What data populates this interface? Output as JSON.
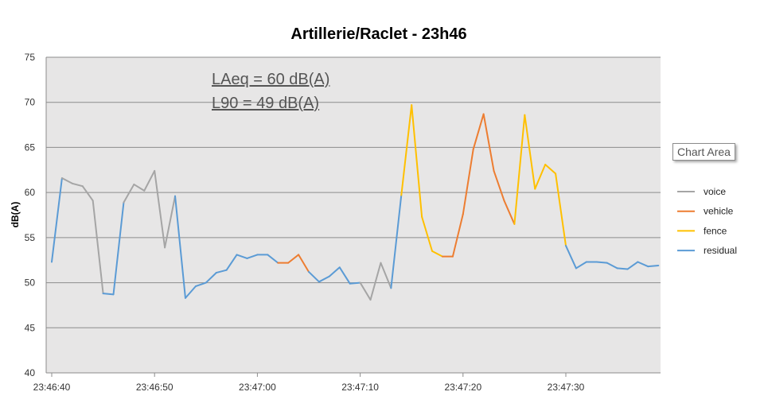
{
  "chart_data": {
    "type": "line",
    "title": "Artillerie/Raclet - 23h46",
    "ylabel": "dB(A)",
    "xlabel": "",
    "ylim": [
      40,
      75
    ],
    "yticks": [
      "40",
      "45",
      "50",
      "55",
      "60",
      "65",
      "70",
      "75"
    ],
    "xticks": [
      "23:46:40",
      "23:46:50",
      "23:47:00",
      "23:47:10",
      "23:47:20",
      "23:47:30"
    ],
    "x_start": "23:46:40",
    "x_step_seconds": 1,
    "values": [
      52.3,
      61.6,
      61.0,
      60.7,
      59.1,
      48.8,
      48.7,
      58.9,
      60.9,
      60.2,
      62.4,
      53.9,
      59.6,
      48.3,
      49.6,
      50.0,
      51.1,
      51.4,
      53.1,
      52.7,
      53.1,
      53.1,
      52.2,
      52.2,
      53.1,
      51.2,
      50.1,
      50.7,
      51.7,
      49.9,
      50.0,
      48.1,
      52.2,
      49.4,
      59.7,
      69.7,
      57.3,
      53.5,
      52.9,
      52.9,
      57.6,
      64.8,
      68.7,
      62.4,
      59.1,
      56.5,
      68.6,
      60.4,
      63.1,
      62.1,
      54.1,
      51.6,
      52.3,
      52.3,
      52.2,
      51.6,
      51.5,
      52.3,
      51.8,
      51.9
    ],
    "segment_labels": [
      "residual",
      "voice",
      "voice",
      "voice",
      "voice",
      "residual",
      "residual",
      "voice",
      "voice",
      "voice",
      "voice",
      "voice",
      "residual",
      "residual",
      "residual",
      "residual",
      "residual",
      "residual",
      "residual",
      "residual",
      "residual",
      "residual",
      "vehicle",
      "vehicle",
      "vehicle",
      "residual",
      "residual",
      "residual",
      "residual",
      "residual",
      "voice",
      "voice",
      "voice",
      "residual",
      "fence",
      "fence",
      "fence",
      "fence",
      "vehicle",
      "vehicle",
      "vehicle",
      "vehicle",
      "vehicle",
      "vehicle",
      "vehicle",
      "fence",
      "fence",
      "fence",
      "fence",
      "fence",
      "residual",
      "residual",
      "residual",
      "residual",
      "residual",
      "residual",
      "residual",
      "residual",
      "residual"
    ],
    "legend": [
      {
        "name": "voice",
        "color": "#a5a5a5"
      },
      {
        "name": "vehicle",
        "color": "#ed7d31"
      },
      {
        "name": "fence",
        "color": "#ffc000"
      },
      {
        "name": "residual",
        "color": "#5b9bd5"
      }
    ],
    "legend_position": "right",
    "grid": true,
    "annotations": [
      "LAeq = 60 dB(A)",
      "L90 = 49 dB(A)"
    ]
  },
  "tooltip": "Chart Area"
}
